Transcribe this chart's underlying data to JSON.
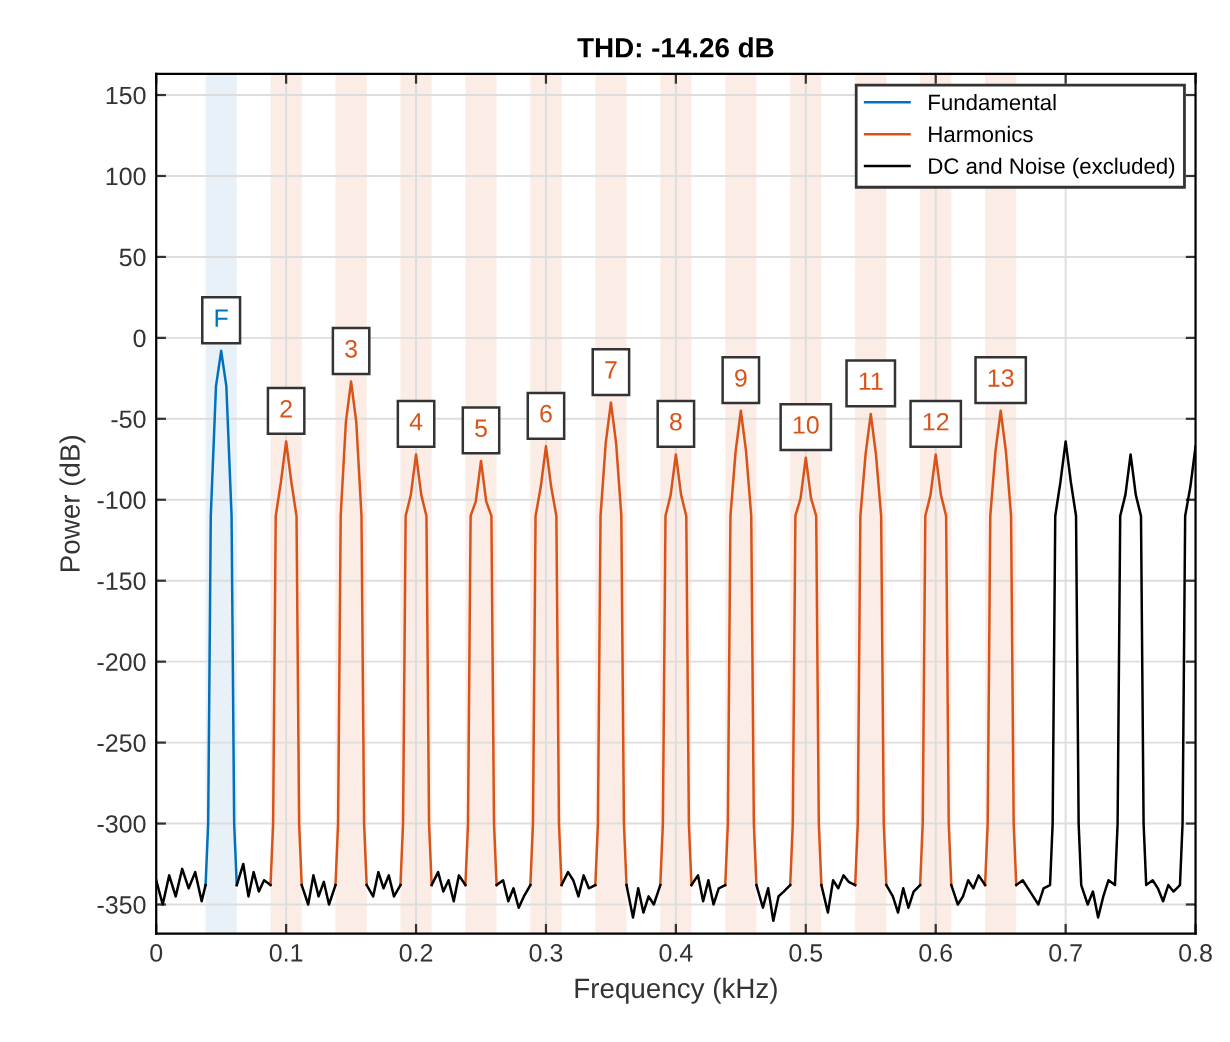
{
  "chart_data": {
    "type": "line",
    "title": "THD: -14.26 dB",
    "xlabel": "Frequency (kHz)",
    "ylabel": "Power (dB)",
    "xlim": [
      0,
      0.8
    ],
    "ylim": [
      -368,
      163
    ],
    "xticks": [
      0,
      0.1,
      0.2,
      0.3,
      0.4,
      0.5,
      0.6,
      0.7,
      0.8
    ],
    "yticks": [
      -350,
      -300,
      -250,
      -200,
      -150,
      -100,
      -50,
      0,
      50,
      100,
      150
    ],
    "grid": true,
    "legend": "top right",
    "marker": "none",
    "line_style": "solid",
    "series": [
      {
        "name": "Fundamental",
        "color": "#0072bd",
        "x": [
          0.038,
          0.04,
          0.042,
          0.046,
          0.05,
          0.054,
          0.058,
          0.06,
          0.062
        ],
        "values": [
          -338,
          -300,
          -110,
          -30,
          -8,
          -30,
          -110,
          -300,
          -338
        ]
      },
      {
        "name": "Harmonics",
        "color": "#d95319",
        "x": [
          0.088,
          0.09,
          0.092,
          0.096,
          0.1,
          0.104,
          0.108,
          0.11,
          0.112,
          0.125,
          0.138,
          0.14,
          0.142,
          0.146,
          0.15,
          0.154,
          0.158,
          0.16,
          0.162,
          0.175,
          0.188,
          0.19,
          0.192,
          0.196,
          0.2,
          0.204,
          0.208,
          0.21,
          0.212,
          0.225,
          0.238,
          0.24,
          0.242,
          0.246,
          0.25,
          0.254,
          0.258,
          0.26,
          0.262,
          0.275,
          0.288,
          0.29,
          0.292,
          0.296,
          0.3,
          0.304,
          0.308,
          0.31,
          0.312,
          0.325,
          0.338,
          0.34,
          0.342,
          0.346,
          0.35,
          0.354,
          0.358,
          0.36,
          0.362,
          0.375,
          0.388,
          0.39,
          0.392,
          0.396,
          0.4,
          0.404,
          0.408,
          0.41,
          0.412,
          0.425,
          0.438,
          0.44,
          0.442,
          0.446,
          0.45,
          0.454,
          0.458,
          0.46,
          0.462,
          0.475,
          0.488,
          0.49,
          0.492,
          0.496,
          0.5,
          0.504,
          0.508,
          0.51,
          0.512,
          0.525,
          0.538,
          0.54,
          0.542,
          0.546,
          0.55,
          0.554,
          0.558,
          0.56,
          0.562,
          0.575,
          0.588,
          0.59,
          0.592,
          0.596,
          0.6,
          0.604,
          0.608,
          0.61,
          0.612,
          0.625,
          0.638,
          0.64,
          0.642,
          0.646,
          0.65,
          0.654,
          0.658,
          0.66,
          0.662
        ],
        "values": [
          -338,
          -300,
          -110,
          -89,
          -64,
          -89,
          -110,
          -300,
          -338,
          null,
          -338,
          -300,
          -110,
          -52,
          -27,
          -52,
          -110,
          -300,
          -338,
          null,
          -338,
          -300,
          -110,
          -97,
          -72,
          -97,
          -110,
          -300,
          -338,
          null,
          -338,
          -300,
          -110,
          -101,
          -76,
          -101,
          -110,
          -300,
          -338,
          null,
          -338,
          -300,
          -110,
          -92,
          -67,
          -92,
          -110,
          -300,
          -338,
          null,
          -338,
          -300,
          -110,
          -65,
          -40,
          -65,
          -110,
          -300,
          -338,
          null,
          -338,
          -300,
          -110,
          -97,
          -72,
          -97,
          -110,
          -300,
          -338,
          null,
          -338,
          -300,
          -110,
          -70,
          -45,
          -70,
          -110,
          -300,
          -338,
          null,
          -338,
          -300,
          -110,
          -99,
          -74,
          -99,
          -110,
          -300,
          -338,
          null,
          -338,
          -300,
          -110,
          -72,
          -47,
          -72,
          -110,
          -300,
          -338,
          null,
          -338,
          -300,
          -110,
          -97,
          -72,
          -97,
          -110,
          -300,
          -338,
          null,
          -338,
          -300,
          -110,
          -70,
          -45,
          -70,
          -110,
          -300,
          -338
        ]
      },
      {
        "name": "DC and Noise (excluded)",
        "color": "#000000",
        "x": [
          0,
          0.005,
          0.01,
          0.015,
          0.02,
          0.025,
          0.03,
          0.035,
          0.038,
          0.05,
          0.062,
          0.067,
          0.071,
          0.075,
          0.079,
          0.083,
          0.088,
          0.1,
          0.112,
          0.117,
          0.121,
          0.125,
          0.129,
          0.133,
          0.138,
          0.15,
          0.162,
          0.167,
          0.171,
          0.175,
          0.179,
          0.183,
          0.188,
          0.2,
          0.212,
          0.217,
          0.221,
          0.225,
          0.229,
          0.233,
          0.238,
          0.25,
          0.262,
          0.267,
          0.271,
          0.275,
          0.279,
          0.283,
          0.288,
          0.3,
          0.312,
          0.317,
          0.321,
          0.325,
          0.329,
          0.333,
          0.338,
          0.35,
          0.362,
          0.367,
          0.371,
          0.375,
          0.379,
          0.383,
          0.388,
          0.4,
          0.412,
          0.417,
          0.421,
          0.425,
          0.429,
          0.433,
          0.438,
          0.45,
          0.462,
          0.467,
          0.471,
          0.475,
          0.479,
          0.483,
          0.488,
          0.5,
          0.512,
          0.517,
          0.521,
          0.525,
          0.529,
          0.533,
          0.538,
          0.55,
          0.562,
          0.567,
          0.571,
          0.575,
          0.579,
          0.583,
          0.588,
          0.6,
          0.612,
          0.617,
          0.621,
          0.625,
          0.629,
          0.633,
          0.638,
          0.65,
          0.662,
          0.667,
          0.671,
          0.675,
          0.679,
          0.683,
          0.688,
          0.69,
          0.692,
          0.696,
          0.7,
          0.704,
          0.708,
          0.71,
          0.712,
          0.717,
          0.721,
          0.725,
          0.729,
          0.733,
          0.738,
          0.74,
          0.742,
          0.746,
          0.75,
          0.754,
          0.758,
          0.76,
          0.762,
          0.767,
          0.771,
          0.775,
          0.779,
          0.783,
          0.788,
          0.79,
          0.792,
          0.796,
          0.8
        ],
        "values": [
          -335,
          -350,
          -332,
          -345,
          -328,
          -340,
          -330,
          -348,
          -338,
          null,
          -338,
          -325,
          -345,
          -330,
          -342,
          -335,
          -338,
          null,
          -338,
          -350,
          -332,
          -345,
          -336,
          -350,
          -338,
          null,
          -338,
          -345,
          -330,
          -340,
          -332,
          -345,
          -338,
          null,
          -338,
          -330,
          -342,
          -335,
          -348,
          -332,
          -338,
          null,
          -338,
          -335,
          -348,
          -340,
          -352,
          -345,
          -338,
          null,
          -338,
          -330,
          -335,
          -345,
          -332,
          -340,
          -338,
          null,
          -338,
          -358,
          -340,
          -355,
          -345,
          -350,
          -338,
          null,
          -338,
          -332,
          -348,
          -335,
          -350,
          -340,
          -338,
          null,
          -338,
          -352,
          -340,
          -360,
          -345,
          -342,
          -338,
          null,
          -338,
          -355,
          -335,
          -340,
          -332,
          -336,
          -338,
          null,
          -338,
          -345,
          -355,
          -340,
          -352,
          -342,
          -338,
          null,
          -338,
          -350,
          -345,
          -335,
          -340,
          -332,
          -338,
          null,
          -338,
          -335,
          -340,
          -345,
          -350,
          -340,
          -338,
          -300,
          -110,
          -89,
          -64,
          -89,
          -110,
          -300,
          -338,
          -350,
          -342,
          -358,
          -345,
          -335,
          -338,
          -300,
          -110,
          -97,
          -72,
          -97,
          -110,
          -300,
          -338,
          -335,
          -340,
          -348,
          -338,
          -342,
          -338,
          -300,
          -110,
          -92,
          -67
        ]
      }
    ],
    "bands": [
      {
        "axis": "x",
        "from": 0.038,
        "to": 0.062,
        "color": "#e8f1f8"
      },
      {
        "axis": "x",
        "from": 0.088,
        "to": 0.112,
        "color": "#fbece5"
      },
      {
        "axis": "x",
        "from": 0.138,
        "to": 0.162,
        "color": "#fbece5"
      },
      {
        "axis": "x",
        "from": 0.188,
        "to": 0.212,
        "color": "#fbece5"
      },
      {
        "axis": "x",
        "from": 0.238,
        "to": 0.262,
        "color": "#fbece5"
      },
      {
        "axis": "x",
        "from": 0.288,
        "to": 0.312,
        "color": "#fbece5"
      },
      {
        "axis": "x",
        "from": 0.338,
        "to": 0.362,
        "color": "#fbece5"
      },
      {
        "axis": "x",
        "from": 0.388,
        "to": 0.412,
        "color": "#fbece5"
      },
      {
        "axis": "x",
        "from": 0.438,
        "to": 0.462,
        "color": "#fbece5"
      },
      {
        "axis": "x",
        "from": 0.488,
        "to": 0.512,
        "color": "#fbece5"
      },
      {
        "axis": "x",
        "from": 0.538,
        "to": 0.562,
        "color": "#fbece5"
      },
      {
        "axis": "x",
        "from": 0.588,
        "to": 0.612,
        "color": "#fbece5"
      },
      {
        "axis": "x",
        "from": 0.638,
        "to": 0.662,
        "color": "#fbece5"
      }
    ],
    "annotations": [
      {
        "text": "F",
        "x": 0.05,
        "y": -8
      },
      {
        "text": "2",
        "x": 0.1,
        "y": -64
      },
      {
        "text": "3",
        "x": 0.15,
        "y": -27
      },
      {
        "text": "4",
        "x": 0.2,
        "y": -72
      },
      {
        "text": "5",
        "x": 0.25,
        "y": -76
      },
      {
        "text": "6",
        "x": 0.3,
        "y": -67
      },
      {
        "text": "7",
        "x": 0.35,
        "y": -40
      },
      {
        "text": "8",
        "x": 0.4,
        "y": -72
      },
      {
        "text": "9",
        "x": 0.45,
        "y": -45
      },
      {
        "text": "10",
        "x": 0.5,
        "y": -74
      },
      {
        "text": "11",
        "x": 0.55,
        "y": -47
      },
      {
        "text": "12",
        "x": 0.6,
        "y": -72
      },
      {
        "text": "13",
        "x": 0.65,
        "y": -45
      }
    ]
  }
}
